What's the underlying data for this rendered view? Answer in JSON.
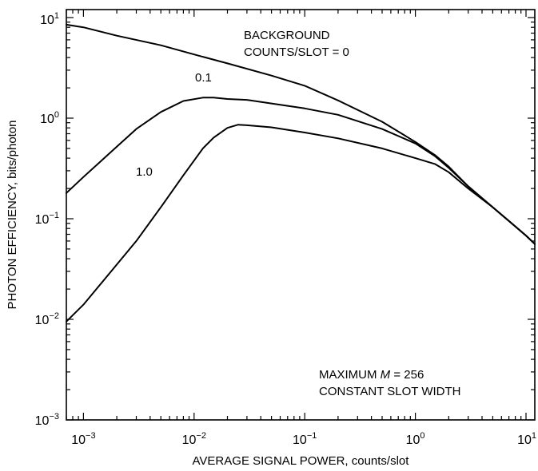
{
  "chart_data": {
    "type": "line",
    "xlabel": "AVERAGE SIGNAL POWER, counts/slot",
    "ylabel": "PHOTON EFFICIENCY, bits/photon",
    "xscale": "log",
    "yscale": "log",
    "xlim": [
      0.0007,
      12
    ],
    "ylim": [
      0.001,
      12
    ],
    "grid": false,
    "x_ticks": [
      {
        "base": "10",
        "exp": "−3",
        "value": 0.001
      },
      {
        "base": "10",
        "exp": "−2",
        "value": 0.01
      },
      {
        "base": "10",
        "exp": "−1",
        "value": 0.1
      },
      {
        "base": "10",
        "exp": "0",
        "value": 1
      },
      {
        "base": "10",
        "exp": "1",
        "value": 10
      }
    ],
    "y_ticks": [
      {
        "base": "10",
        "exp": "−3",
        "value": 0.001
      },
      {
        "base": "10",
        "exp": "−2",
        "value": 0.01
      },
      {
        "base": "10",
        "exp": "−1",
        "value": 0.1
      },
      {
        "base": "10",
        "exp": "0",
        "value": 1
      },
      {
        "base": "10",
        "exp": "1",
        "value": 10
      }
    ],
    "series": [
      {
        "label_lines": [
          "BACKGROUND",
          "COUNTS/SLOT = 0"
        ],
        "x": [
          0.0007,
          0.001,
          0.002,
          0.005,
          0.01,
          0.02,
          0.05,
          0.1,
          0.2,
          0.5,
          1,
          1.5,
          2,
          3,
          5,
          10,
          12
        ],
        "y": [
          8.5,
          8.0,
          6.6,
          5.3,
          4.3,
          3.5,
          2.65,
          2.1,
          1.5,
          0.92,
          0.58,
          0.43,
          0.33,
          0.21,
          0.13,
          0.068,
          0.056
        ]
      },
      {
        "label_lines": [
          "0.1"
        ],
        "x": [
          0.0007,
          0.001,
          0.002,
          0.003,
          0.005,
          0.008,
          0.012,
          0.015,
          0.02,
          0.03,
          0.05,
          0.1,
          0.2,
          0.5,
          1,
          1.5,
          2,
          3,
          5,
          10,
          12
        ],
        "y": [
          0.18,
          0.26,
          0.52,
          0.78,
          1.15,
          1.48,
          1.6,
          1.6,
          1.55,
          1.52,
          1.4,
          1.25,
          1.08,
          0.78,
          0.56,
          0.42,
          0.32,
          0.21,
          0.13,
          0.068,
          0.056
        ]
      },
      {
        "label_lines": [
          "1.0"
        ],
        "x": [
          0.0007,
          0.001,
          0.002,
          0.003,
          0.005,
          0.008,
          0.012,
          0.015,
          0.02,
          0.025,
          0.03,
          0.05,
          0.1,
          0.2,
          0.5,
          1,
          1.5,
          2,
          3,
          5,
          10,
          12
        ],
        "y": [
          0.0095,
          0.014,
          0.035,
          0.06,
          0.13,
          0.27,
          0.5,
          0.64,
          0.8,
          0.86,
          0.85,
          0.81,
          0.72,
          0.63,
          0.5,
          0.4,
          0.35,
          0.29,
          0.2,
          0.13,
          0.068,
          0.056
        ]
      }
    ],
    "annotation_lines": [
      "MAXIMUM M = 256",
      "CONSTANT SLOT WIDTH"
    ]
  }
}
